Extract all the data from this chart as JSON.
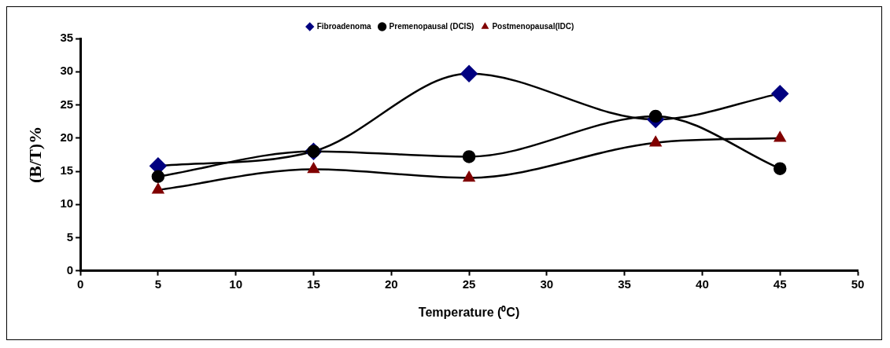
{
  "chart_data": {
    "type": "line",
    "xlabel": "Temperature (⁰C)",
    "ylabel": "(B/T)%",
    "x": [
      5,
      15,
      25,
      37,
      45
    ],
    "series": [
      {
        "name": "Fibroadenoma",
        "color": "#000080",
        "marker": "diamond",
        "values": [
          15.8,
          18,
          29.7,
          22.8,
          26.7
        ]
      },
      {
        "name": "Premenopausal (DCIS)",
        "color": "#000000",
        "marker": "circle",
        "values": [
          14.2,
          18,
          17.2,
          23.3,
          15.4
        ]
      },
      {
        "name": "Postmenopausal(IDC)",
        "color": "#800000",
        "marker": "triangle",
        "values": [
          12.2,
          15.3,
          14,
          19.3,
          20
        ]
      }
    ],
    "xlim": [
      0,
      50
    ],
    "xticks": [
      0,
      5,
      10,
      15,
      20,
      25,
      30,
      35,
      40,
      45,
      50
    ],
    "ylim": [
      0,
      35
    ],
    "yticks": [
      0,
      5,
      10,
      15,
      20,
      25,
      30,
      35
    ],
    "grid": false,
    "legend": "top"
  }
}
